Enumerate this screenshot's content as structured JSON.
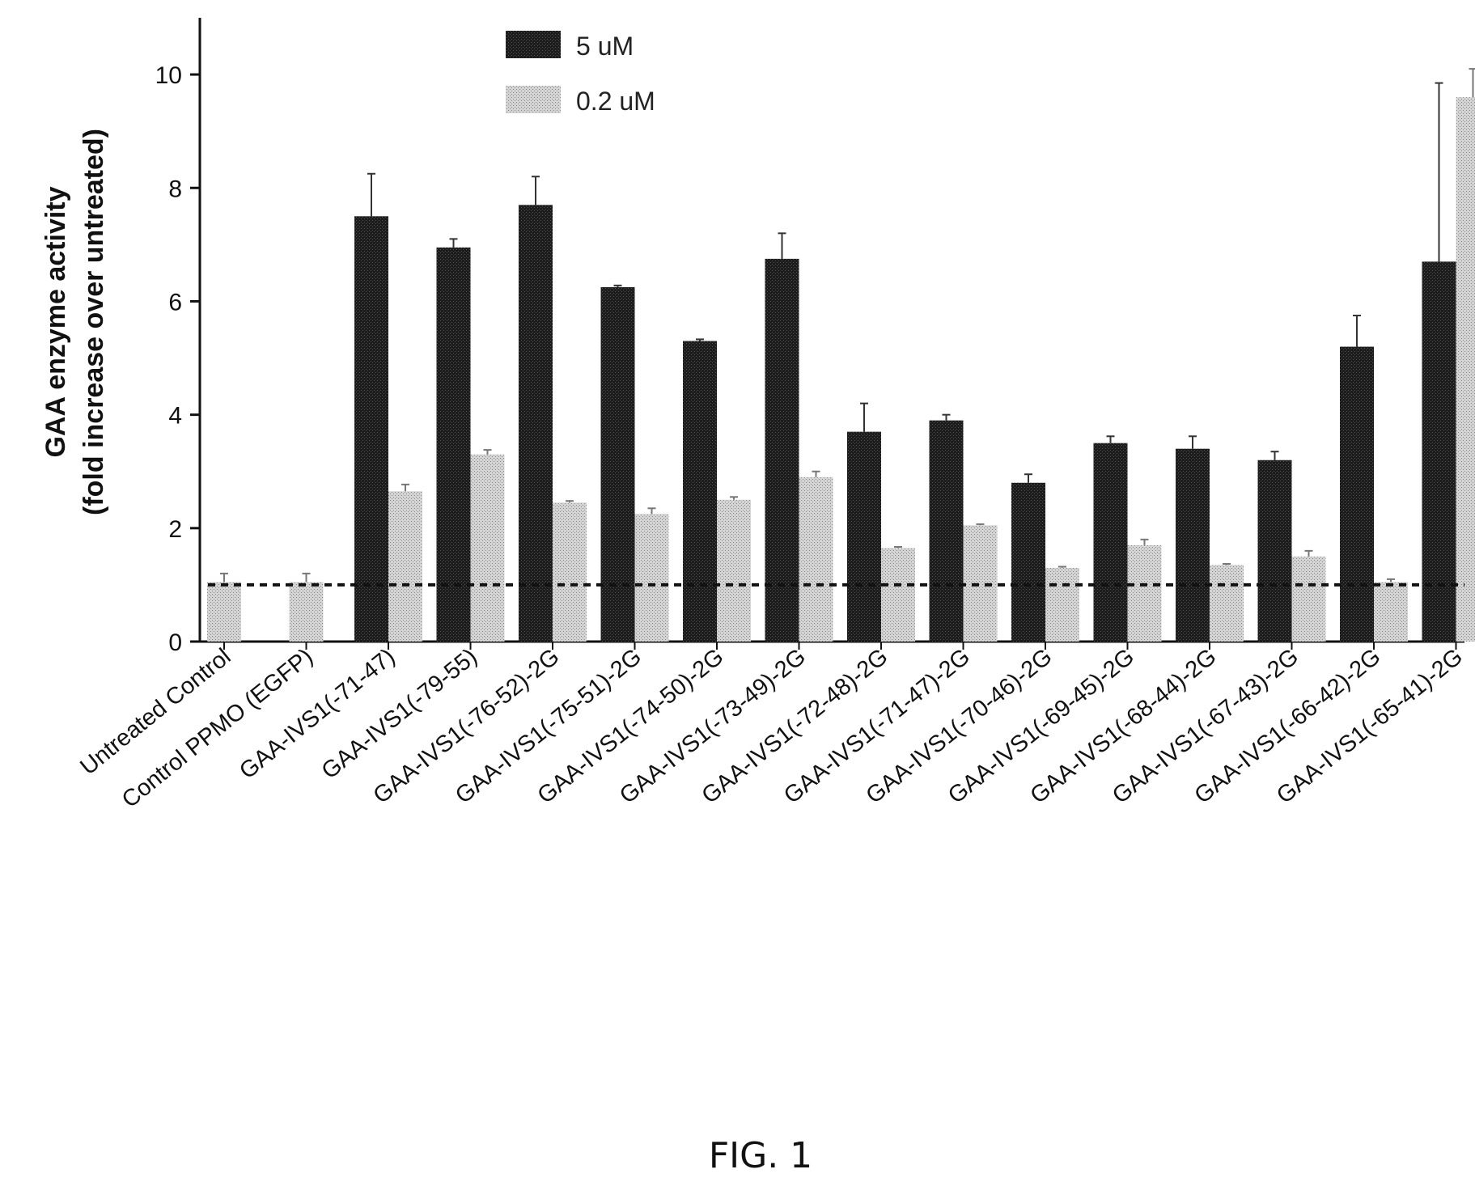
{
  "chart_data": {
    "type": "bar",
    "ylabel_lines": [
      "GAA enzyme activity",
      "(fold increase over untreated)"
    ],
    "ylim": [
      0,
      11
    ],
    "yticks": [
      0,
      2,
      4,
      6,
      8,
      10
    ],
    "reference_line": 1,
    "categories": [
      "Untreated Control",
      "Control PPMO (EGFP)",
      "GAA-IVS1(-71-47)",
      "GAA-IVS1(-79-55)",
      "GAA-IVS1(-76-52)-2G",
      "GAA-IVS1(-75-51)-2G",
      "GAA-IVS1(-74-50)-2G",
      "GAA-IVS1(-73-49)-2G",
      "GAA-IVS1(-72-48)-2G",
      "GAA-IVS1(-71-47)-2G",
      "GAA-IVS1(-70-46)-2G",
      "GAA-IVS1(-69-45)-2G",
      "GAA-IVS1(-68-44)-2G",
      "GAA-IVS1(-67-43)-2G",
      "GAA-IVS1(-66-42)-2G",
      "GAA-IVS1(-65-41)-2G"
    ],
    "series": [
      {
        "name": "5 uM",
        "color": "#1a1a1a",
        "values": [
          null,
          null,
          7.5,
          6.95,
          7.7,
          6.25,
          5.3,
          6.75,
          3.7,
          3.9,
          2.8,
          3.5,
          3.4,
          3.2,
          5.2,
          6.7
        ],
        "errors": [
          null,
          null,
          0.75,
          0.15,
          0.5,
          0.03,
          0.03,
          0.45,
          0.5,
          0.1,
          0.15,
          0.12,
          0.22,
          0.15,
          0.55,
          3.15
        ]
      },
      {
        "name": "0.2 uM",
        "color": "#bdbdbd",
        "values": [
          1.05,
          1.05,
          2.65,
          3.3,
          2.45,
          2.25,
          2.5,
          2.9,
          1.65,
          2.05,
          1.3,
          1.7,
          1.35,
          1.5,
          1.05,
          9.6
        ],
        "errors": [
          0.15,
          0.15,
          0.12,
          0.08,
          0.03,
          0.1,
          0.05,
          0.1,
          0.02,
          0.02,
          0.02,
          0.1,
          0.02,
          0.1,
          0.05,
          0.5
        ]
      }
    ],
    "legend": {
      "placement": "top-center"
    }
  },
  "caption": "FIG. 1"
}
